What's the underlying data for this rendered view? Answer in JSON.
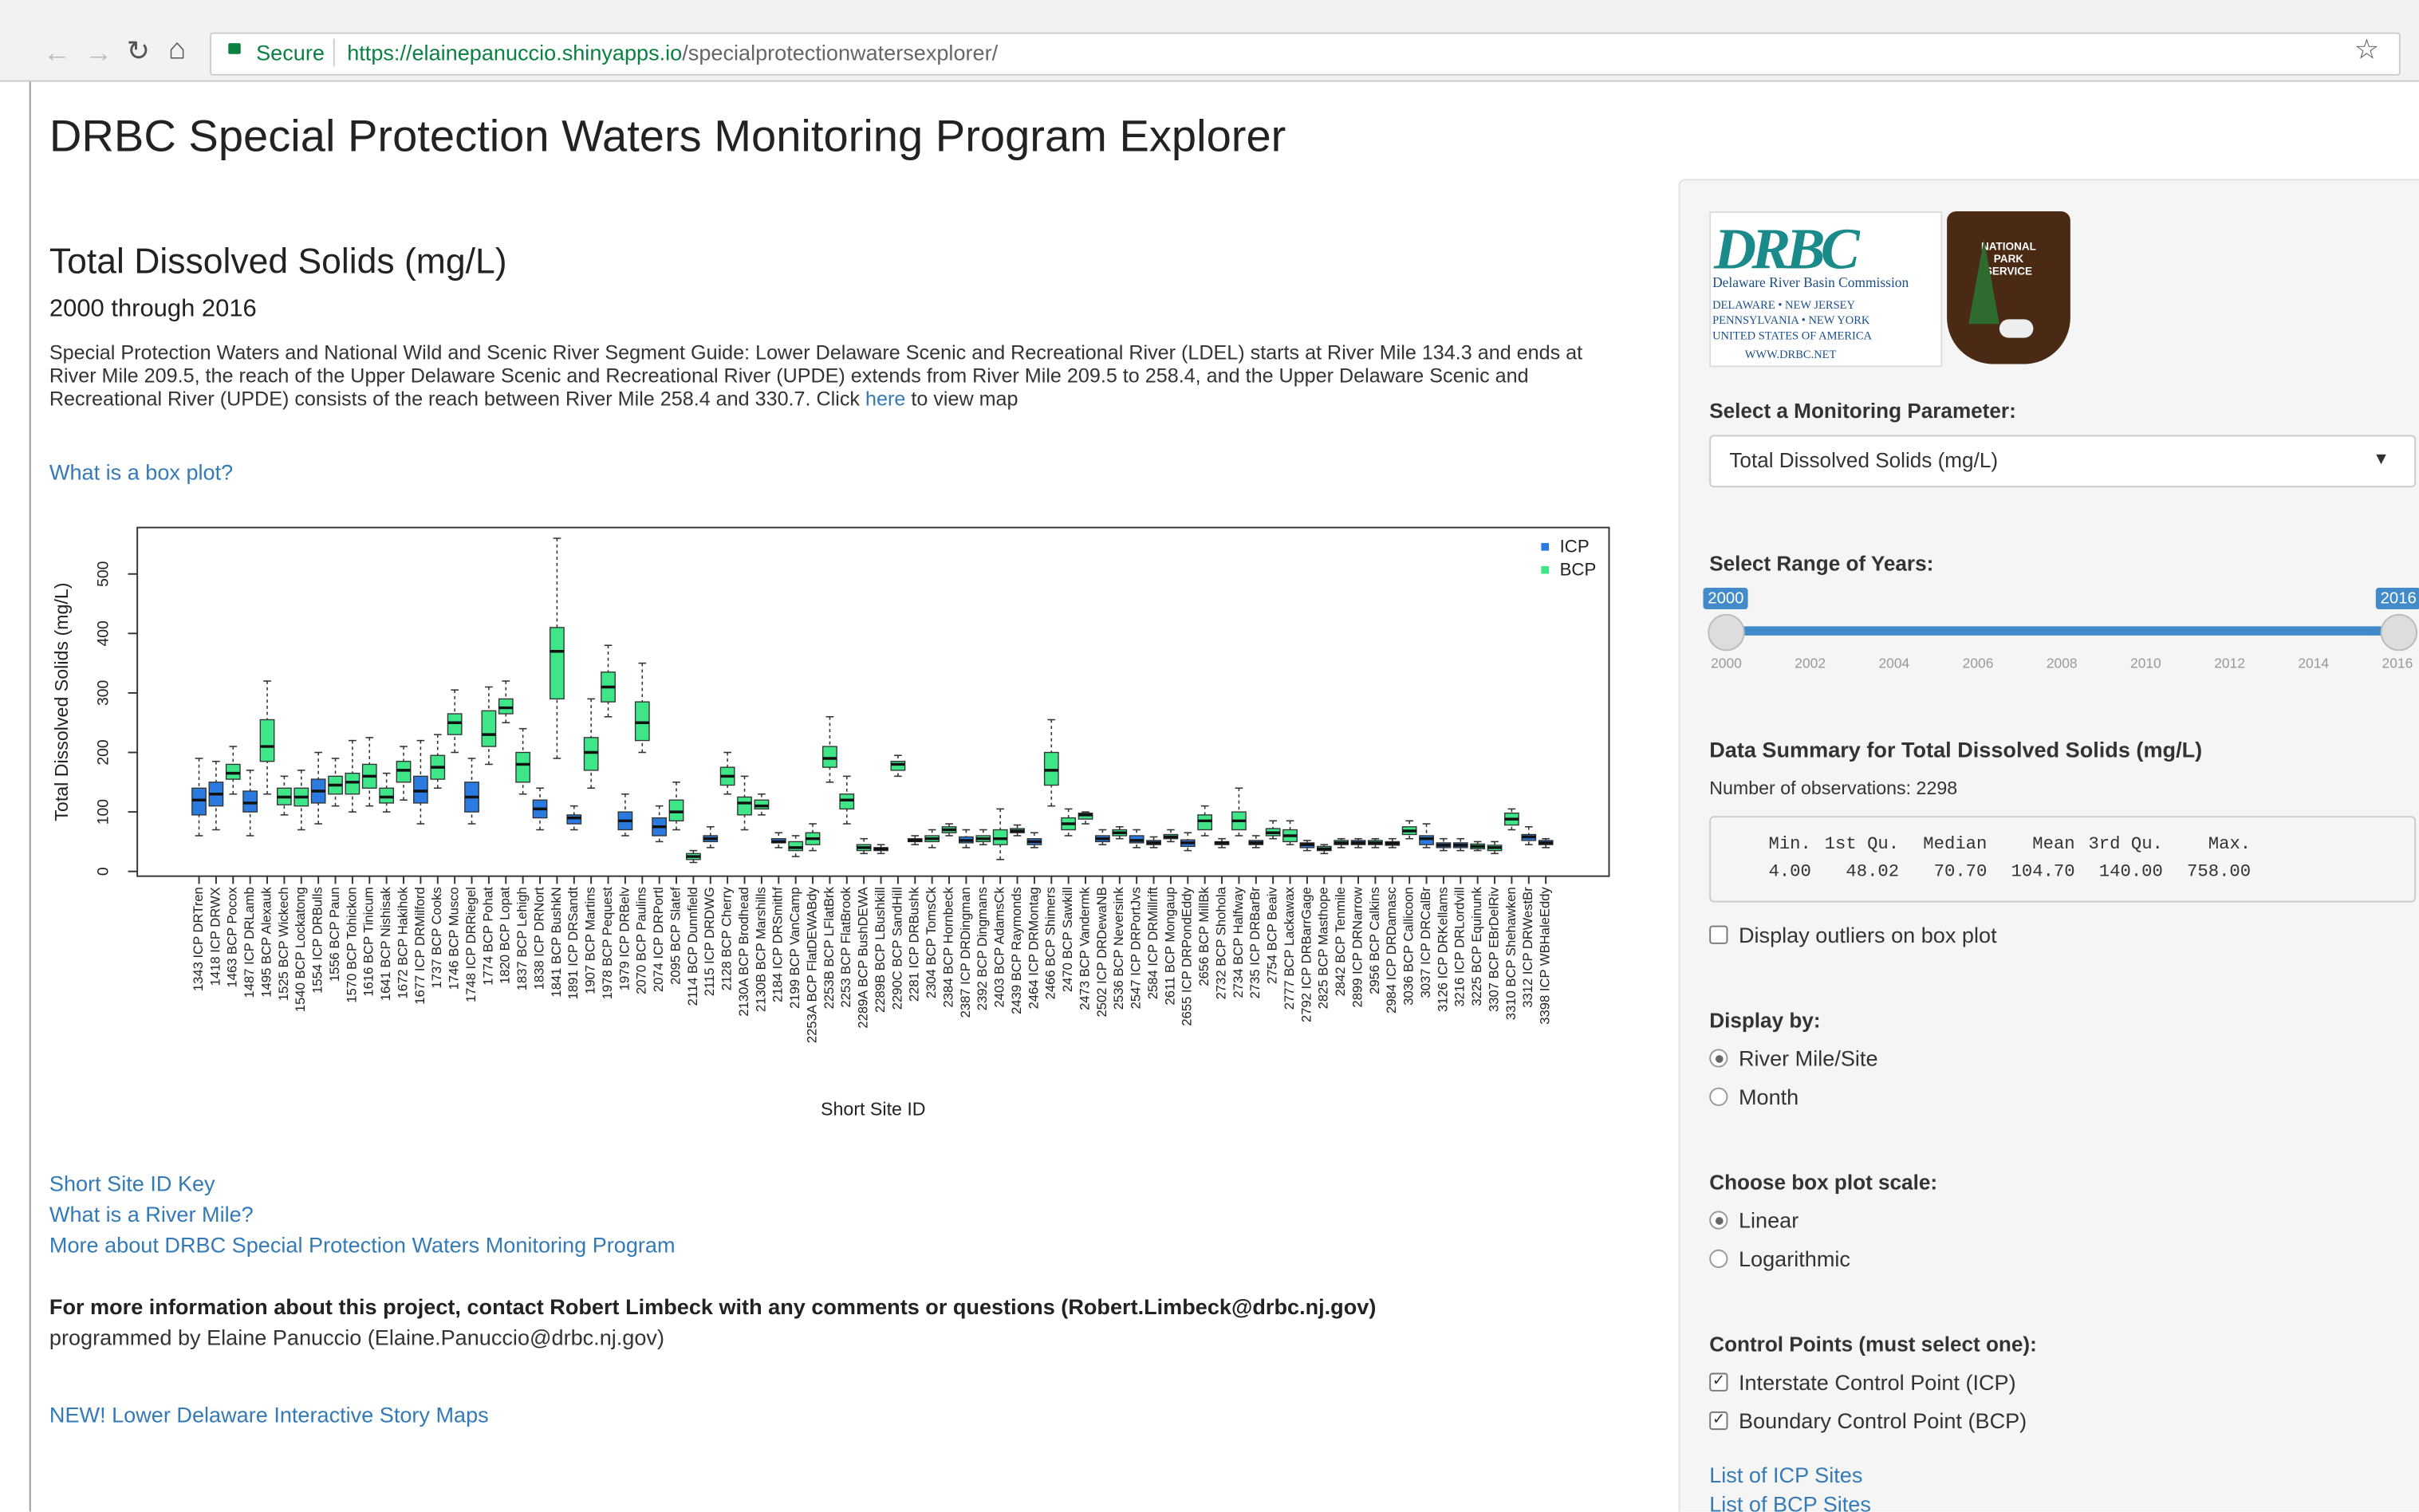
{
  "browser": {
    "secure": "Secure",
    "url_host": "https://elainepanuccio.shinyapps.io",
    "url_path": "/specialprotectionwatersexplorer/"
  },
  "title": "DRBC Special Protection Waters Monitoring Program Explorer",
  "main": {
    "heading": "Total Dissolved Solids (mg/L)",
    "years": "2000 through 2016",
    "description": "Special Protection Waters and National Wild and Scenic River Segment Guide: Lower Delaware Scenic and Recreational River (LDEL) starts at River Mile 134.3 and ends at River Mile 209.5, the reach of the Upper Delaware Scenic and Recreational River (UPDE) extends from River Mile 209.5 to 258.4, and the Upper Delaware Scenic and Recreational River (UPDE) consists of the reach between River Mile 258.4 and 330.7. Click",
    "desc_link": "here",
    "desc_tail": "to view map",
    "box_help": "What is a box plot?",
    "links": [
      "Short Site ID Key",
      "What is a River Mile?",
      "More about DRBC Special Protection Waters Monitoring Program"
    ],
    "contact": "For more information about this project, contact Robert Limbeck with any comments or questions (Robert.Limbeck@drbc.nj.gov)",
    "programmer": "programmed by Elaine Panuccio (Elaine.Panuccio@drbc.nj.gov)",
    "story_maps": "NEW! Lower Delaware Interactive Story Maps"
  },
  "sidebar": {
    "logo_lines": [
      "Delaware River Basin Commission",
      "DELAWARE  •  NEW JERSEY",
      "PENNSYLVANIA  •  NEW YORK",
      "UNITED STATES OF AMERICA",
      "WWW.DRBC.NET"
    ],
    "nps_lines": [
      "NATIONAL",
      "PARK",
      "SERVICE"
    ],
    "param_label": "Select a Monitoring Parameter:",
    "param_value": "Total Dissolved Solids (mg/L)",
    "range_label": "Select Range of Years:",
    "slider": {
      "from": 2000,
      "to": 2016,
      "ticks": [
        2000,
        2002,
        2004,
        2006,
        2008,
        2010,
        2012,
        2014,
        2016
      ]
    },
    "summary_title": "Data Summary for Total Dissolved Solids (mg/L)",
    "n_obs": "Number of observations: 2298",
    "summary_headers": [
      "Min.",
      "1st Qu.",
      "Median",
      "Mean",
      "3rd Qu.",
      "Max."
    ],
    "summary_values": [
      "4.00",
      "48.02",
      "70.70",
      "104.70",
      "140.00",
      "758.00"
    ],
    "outliers": "Display outliers on box plot",
    "display_label": "Display by:",
    "display_options": [
      "River Mile/Site",
      "Month"
    ],
    "scale_label": "Choose box plot scale:",
    "scale_options": [
      "Linear",
      "Logarithmic"
    ],
    "control_label": "Control Points (must select one):",
    "control_options": [
      "Interstate Control Point (ICP)",
      "Boundary Control Point (BCP)"
    ],
    "site_links": [
      "List of ICP Sites",
      "List of BCP Sites"
    ]
  },
  "chart_data": {
    "type": "box",
    "ylabel": "Total Dissolved Solids (mg/L)",
    "xlabel": "Short Site ID",
    "ylim": [
      -8,
      578
    ],
    "yticks": [
      0,
      100,
      200,
      300,
      400,
      500
    ],
    "legend": "top-right",
    "series": [
      {
        "name": "ICP",
        "color": "#2b7ae0"
      },
      {
        "name": "BCP",
        "color": "#3ee688"
      }
    ],
    "categories": [
      "1343 ICP DRTren",
      "1418 ICP DRWX",
      "1463 BCP Pocox",
      "1487 ICP DRLamb",
      "1495 BCP Alexauk",
      "1525 BCP Wickech",
      "1540 BCP Lockatong",
      "1554 ICP DRBulls",
      "1556 BCP Paun",
      "1570 BCP Tohickon",
      "1616 BCP Tinicum",
      "1641 BCP Nishisak",
      "1672 BCP Hakihok",
      "1677 ICP DRMilford",
      "1737 BCP Cooks",
      "1746 BCP Musco",
      "1748 ICP DRRiegel",
      "1774 BCP Pohat",
      "1820 BCP Lopat",
      "1837 BCP Lehigh",
      "1838 ICP DRNort",
      "1841 BCP BushkN",
      "1891 ICP DRSandt",
      "1907 BCP Martins",
      "1978 BCP Pequest",
      "1979 ICP DRBelv",
      "2070 BCP Paulins",
      "2074 ICP DRPortl",
      "2095 BCP Slatef",
      "2114 BCP Dunnfield",
      "2115 ICP DRDWG",
      "2128 BCP Cherry",
      "2130A BCP Brodhead",
      "2130B BCP Marshills",
      "2184 ICP DRSmithf",
      "2199 BCP VanCamp",
      "2253A BCP FlatDEWABdy",
      "2253B BCP LFlatBrk",
      "2253 BCP FlatBrook",
      "2289A BCP BushDEWA",
      "2289B BCP LBushkill",
      "2290C BCP SandHill",
      "2281 ICP DRBushk",
      "2304 BCP TomsCk",
      "2384 BCP Hornbeck",
      "2387 ICP DRDingman",
      "2392 BCP Dingmans",
      "2403 BCP AdamsCk",
      "2439 BCP Raymonds",
      "2464 ICP DRMontag",
      "2466 BCP Shimers",
      "2470 BCP Sawkill",
      "2473 BCP Vandermk",
      "2502 ICP DRDewaNB",
      "2536 BCP Neversink",
      "2547 ICP DRPortJvs",
      "2584 ICP DRMillrift",
      "2611 BCP Mongaup",
      "2655 ICP DRPondEddy",
      "2656 BCP MillBk",
      "2732 BCP Shohola",
      "2734 BCP Halfway",
      "2735 ICP DRBarBr",
      "2754 BCP Beaiv",
      "2777 BCP Lackawax",
      "2792 ICP DRBarrGage",
      "2825 BCP Masthope",
      "2842 BCP Tenmile",
      "2899 ICP DRNarrow",
      "2956 BCP Calkins",
      "2984 ICP DRDamasc",
      "3036 BCP Callicoon",
      "3037 ICP DRCalBr",
      "3126 ICP DRKellams",
      "3216 ICP DRLordvill",
      "3225 BCP Equinunk",
      "3307 BCP EBrDelRiv",
      "3310 BCP Shehawken",
      "3312 ICP DRWestBr",
      "3398 ICP WBHaleEddy"
    ],
    "box_series": [
      0,
      0,
      1,
      0,
      1,
      1,
      1,
      0,
      1,
      1,
      1,
      1,
      1,
      0,
      1,
      1,
      0,
      1,
      1,
      1,
      0,
      1,
      0,
      1,
      1,
      0,
      1,
      0,
      1,
      1,
      0,
      1,
      1,
      1,
      0,
      1,
      1,
      1,
      1,
      1,
      1,
      1,
      0,
      1,
      1,
      0,
      1,
      1,
      1,
      0,
      1,
      1,
      1,
      0,
      1,
      0,
      0,
      1,
      0,
      1,
      1,
      1,
      0,
      1,
      1,
      0,
      1,
      1,
      0,
      1,
      0,
      1,
      0,
      0,
      0,
      1,
      1,
      1,
      0,
      0
    ],
    "values": [
      [
        60,
        95,
        120,
        140,
        190
      ],
      [
        70,
        110,
        130,
        150,
        185
      ],
      [
        130,
        155,
        165,
        180,
        210
      ],
      [
        60,
        100,
        115,
        135,
        170
      ],
      [
        130,
        185,
        210,
        255,
        320
      ],
      [
        95,
        112,
        125,
        140,
        160
      ],
      [
        70,
        110,
        125,
        140,
        170
      ],
      [
        80,
        115,
        135,
        155,
        200
      ],
      [
        110,
        130,
        145,
        160,
        190
      ],
      [
        100,
        130,
        150,
        165,
        220
      ],
      [
        110,
        140,
        160,
        180,
        225
      ],
      [
        100,
        115,
        125,
        140,
        165
      ],
      [
        120,
        150,
        170,
        185,
        210
      ],
      [
        80,
        115,
        135,
        160,
        220
      ],
      [
        140,
        155,
        175,
        195,
        230
      ],
      [
        200,
        230,
        250,
        265,
        305
      ],
      [
        80,
        100,
        125,
        150,
        190
      ],
      [
        180,
        210,
        230,
        270,
        310
      ],
      [
        250,
        265,
        275,
        290,
        320
      ],
      [
        130,
        150,
        180,
        200,
        240
      ],
      [
        70,
        90,
        105,
        120,
        140
      ],
      [
        190,
        290,
        370,
        410,
        560
      ],
      [
        70,
        80,
        90,
        95,
        110
      ],
      [
        140,
        170,
        200,
        225,
        290
      ],
      [
        260,
        285,
        310,
        335,
        380
      ],
      [
        60,
        70,
        85,
        100,
        130
      ],
      [
        200,
        220,
        250,
        285,
        350
      ],
      [
        50,
        60,
        75,
        90,
        110
      ],
      [
        70,
        85,
        100,
        120,
        150
      ],
      [
        15,
        20,
        25,
        30,
        35
      ],
      [
        40,
        50,
        55,
        60,
        75
      ],
      [
        130,
        145,
        160,
        175,
        200
      ],
      [
        70,
        95,
        115,
        125,
        160
      ],
      [
        95,
        105,
        110,
        120,
        130
      ],
      [
        40,
        48,
        50,
        55,
        65
      ],
      [
        25,
        35,
        40,
        50,
        60
      ],
      [
        35,
        45,
        55,
        65,
        80
      ],
      [
        150,
        175,
        190,
        210,
        260
      ],
      [
        80,
        105,
        120,
        130,
        160
      ],
      [
        30,
        35,
        40,
        45,
        55
      ],
      [
        30,
        35,
        38,
        40,
        45
      ],
      [
        160,
        170,
        180,
        185,
        195
      ],
      [
        45,
        50,
        52,
        55,
        60
      ],
      [
        40,
        50,
        55,
        60,
        70
      ],
      [
        60,
        65,
        70,
        75,
        80
      ],
      [
        40,
        48,
        52,
        58,
        70
      ],
      [
        45,
        50,
        55,
        60,
        70
      ],
      [
        20,
        45,
        55,
        70,
        105
      ],
      [
        60,
        65,
        68,
        72,
        78
      ],
      [
        40,
        45,
        50,
        55,
        65
      ],
      [
        110,
        145,
        170,
        200,
        255
      ],
      [
        60,
        70,
        80,
        90,
        105
      ],
      [
        80,
        88,
        95,
        98,
        100
      ],
      [
        45,
        50,
        55,
        60,
        70
      ],
      [
        55,
        60,
        65,
        70,
        75
      ],
      [
        40,
        48,
        52,
        60,
        70
      ],
      [
        40,
        45,
        48,
        52,
        58
      ],
      [
        50,
        55,
        58,
        62,
        70
      ],
      [
        35,
        42,
        48,
        53,
        65
      ],
      [
        60,
        70,
        85,
        95,
        110
      ],
      [
        40,
        45,
        48,
        50,
        55
      ],
      [
        60,
        70,
        85,
        100,
        140
      ],
      [
        40,
        45,
        48,
        52,
        60
      ],
      [
        55,
        60,
        65,
        72,
        85
      ],
      [
        45,
        50,
        60,
        70,
        85
      ],
      [
        35,
        40,
        45,
        48,
        52
      ],
      [
        30,
        35,
        38,
        42,
        45
      ],
      [
        40,
        45,
        48,
        52,
        55
      ],
      [
        40,
        45,
        48,
        52,
        55
      ],
      [
        40,
        45,
        48,
        52,
        55
      ],
      [
        40,
        44,
        47,
        50,
        55
      ],
      [
        55,
        62,
        68,
        75,
        85
      ],
      [
        40,
        45,
        55,
        60,
        80
      ],
      [
        35,
        40,
        44,
        48,
        55
      ],
      [
        35,
        40,
        44,
        48,
        55
      ],
      [
        35,
        38,
        42,
        46,
        50
      ],
      [
        30,
        35,
        40,
        44,
        50
      ],
      [
        70,
        78,
        88,
        98,
        105
      ],
      [
        45,
        52,
        58,
        62,
        75
      ],
      [
        40,
        45,
        48,
        52,
        55
      ]
    ]
  }
}
